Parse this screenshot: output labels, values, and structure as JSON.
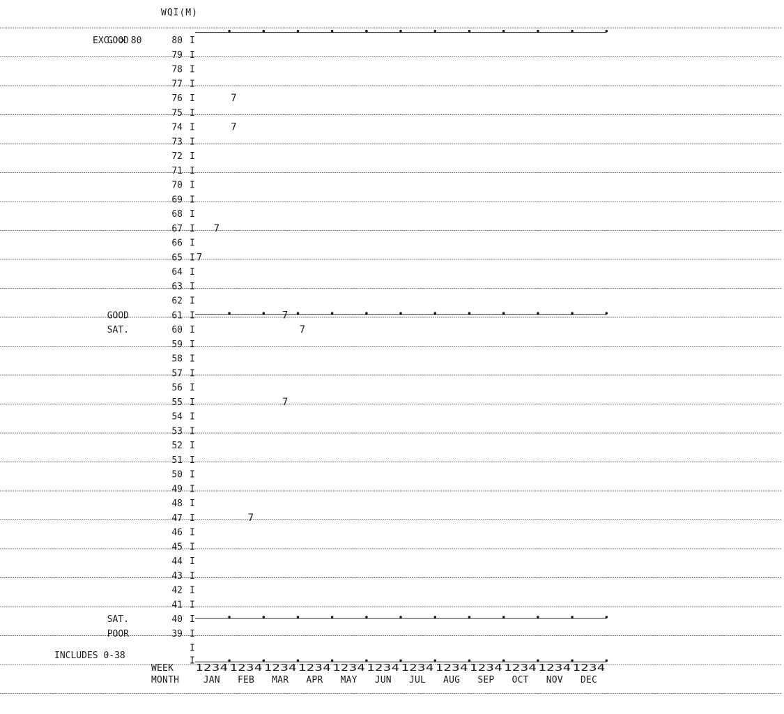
{
  "chart_data": {
    "type": "scatter",
    "title": "WQI(M)",
    "y_ticks": [
      80,
      79,
      78,
      77,
      76,
      75,
      74,
      73,
      72,
      71,
      70,
      69,
      68,
      67,
      66,
      65,
      64,
      63,
      62,
      61,
      60,
      59,
      58,
      57,
      56,
      55,
      54,
      53,
      52,
      51,
      50,
      49,
      48,
      47,
      46,
      45,
      44,
      43,
      42,
      41,
      40,
      39
    ],
    "ylim": [
      38,
      80
    ],
    "top_label": "EXC. > 80",
    "bottom_label": "INCLUDES  0-38",
    "band_labels": [
      {
        "text": "GOOD",
        "y": 80
      },
      {
        "text": "GOOD",
        "y": 61
      },
      {
        "text": "SAT.",
        "y": 60
      },
      {
        "text": "SAT.",
        "y": 40
      },
      {
        "text": "POOR",
        "y": 39
      }
    ],
    "reference_lines": [
      80.5,
      61,
      40
    ],
    "point_marker": "7",
    "x_categories": [
      "JAN",
      "FEB",
      "MAR",
      "APR",
      "MAY",
      "JUN",
      "JUL",
      "AUG",
      "SEP",
      "OCT",
      "NOV",
      "DEC"
    ],
    "x_label_week": "WEEK",
    "x_label_month": "MONTH",
    "week_pattern": "1234",
    "points": [
      {
        "week": 1,
        "y": 65
      },
      {
        "week": 3,
        "y": 67
      },
      {
        "week": 5,
        "y": 74
      },
      {
        "week": 5,
        "y": 76
      },
      {
        "week": 7,
        "y": 47
      },
      {
        "week": 11,
        "y": 55
      },
      {
        "week": 11,
        "y": 61
      },
      {
        "week": 13,
        "y": 60
      }
    ],
    "grid": true,
    "legend": "none"
  }
}
